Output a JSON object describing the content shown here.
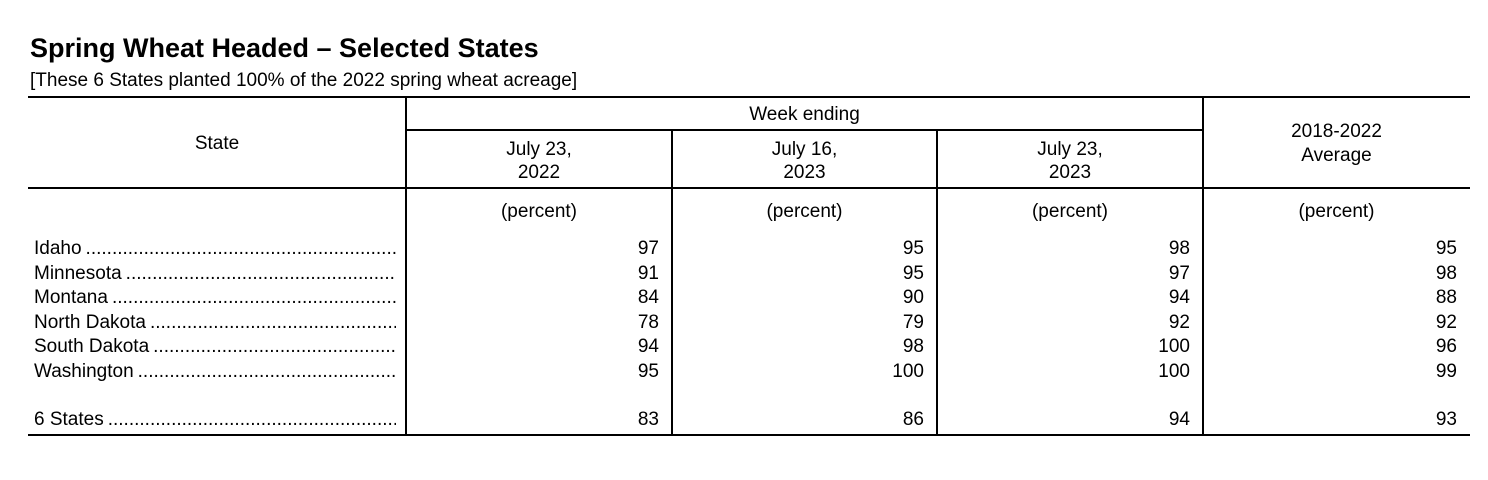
{
  "title": "Spring Wheat Headed – Selected States",
  "subtitle": "[These 6 States planted 100% of the 2022 spring wheat acreage]",
  "table": {
    "state_header": "State",
    "group_header": "Week ending",
    "columns": [
      {
        "line1": "July 23,",
        "line2": "2022",
        "unit": "(percent)"
      },
      {
        "line1": "July 16,",
        "line2": "2023",
        "unit": "(percent)"
      },
      {
        "line1": "July 23,",
        "line2": "2023",
        "unit": "(percent)"
      },
      {
        "line1": "2018-2022",
        "line2": "Average",
        "unit": "(percent)"
      }
    ],
    "rows": [
      {
        "state": "Idaho",
        "values": [
          "97",
          "95",
          "98",
          "95"
        ]
      },
      {
        "state": "Minnesota",
        "values": [
          "91",
          "95",
          "97",
          "98"
        ]
      },
      {
        "state": "Montana",
        "values": [
          "84",
          "90",
          "94",
          "88"
        ]
      },
      {
        "state": "North Dakota",
        "values": [
          "78",
          "79",
          "92",
          "92"
        ]
      },
      {
        "state": "South Dakota",
        "values": [
          "94",
          "98",
          "100",
          "96"
        ]
      },
      {
        "state": "Washington",
        "values": [
          "95",
          "100",
          "100",
          "99"
        ]
      }
    ],
    "total": {
      "state": "6 States",
      "values": [
        "83",
        "86",
        "94",
        "93"
      ]
    }
  }
}
